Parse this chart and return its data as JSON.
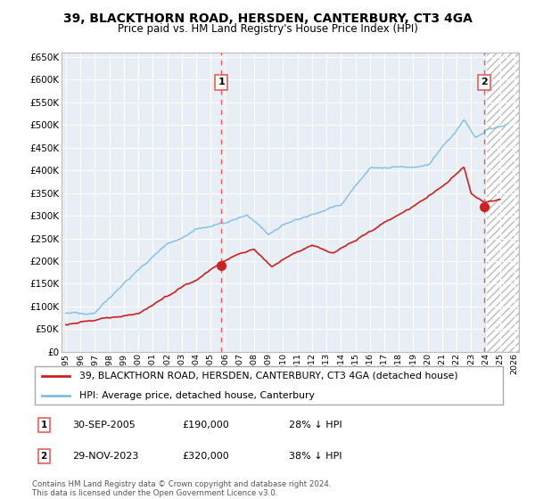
{
  "title": "39, BLACKTHORN ROAD, HERSDEN, CANTERBURY, CT3 4GA",
  "subtitle": "Price paid vs. HM Land Registry's House Price Index (HPI)",
  "property_label": "39, BLACKTHORN ROAD, HERSDEN, CANTERBURY, CT3 4GA (detached house)",
  "hpi_label": "HPI: Average price, detached house, Canterbury",
  "transaction1_date": "30-SEP-2005",
  "transaction1_price": 190000,
  "transaction1_pct": "28% ↓ HPI",
  "transaction2_date": "29-NOV-2023",
  "transaction2_price": 320000,
  "transaction2_pct": "38% ↓ HPI",
  "footer": "Contains HM Land Registry data © Crown copyright and database right 2024.\nThis data is licensed under the Open Government Licence v3.0.",
  "hpi_color": "#7fbfe8",
  "property_color": "#cc2222",
  "dashed_line_color": "#e06060",
  "background_plot": "#e8eef5",
  "ylim_min": 0,
  "ylim_max": 660000,
  "xmin": 1994.7,
  "xmax": 2026.3
}
